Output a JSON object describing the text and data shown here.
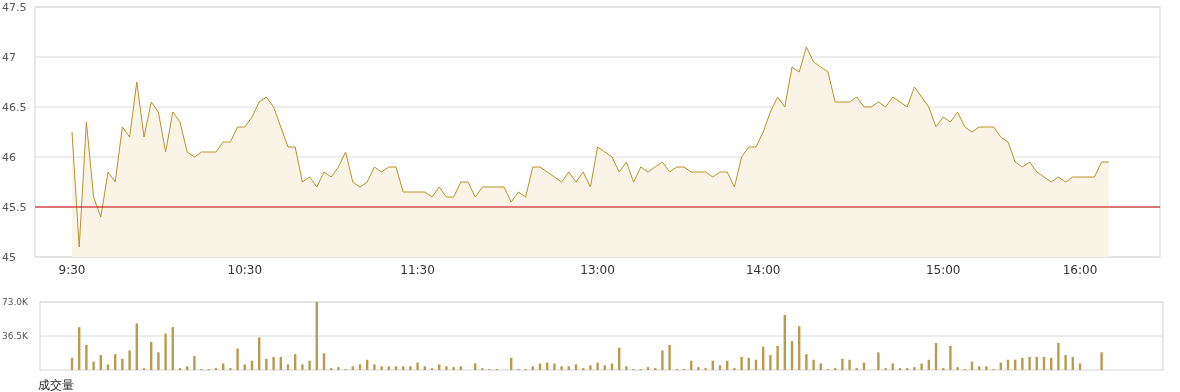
{
  "chart_data": [
    {
      "type": "area",
      "categories": [
        "9:30",
        null,
        null,
        null,
        null,
        null,
        null,
        null,
        null,
        null,
        null,
        null,
        null,
        null,
        null,
        null,
        null,
        null,
        null,
        null,
        null,
        null,
        null,
        null,
        "10:30",
        null,
        null,
        null,
        null,
        null,
        null,
        null,
        null,
        null,
        null,
        null,
        null,
        null,
        null,
        null,
        null,
        null,
        null,
        null,
        null,
        null,
        null,
        null,
        "11:30",
        null,
        null,
        null,
        null,
        null,
        null,
        null,
        null,
        null,
        null,
        null,
        null,
        null,
        null,
        null,
        null,
        null,
        null,
        null,
        null,
        null,
        null,
        null,
        null,
        "13:00",
        null,
        null,
        null,
        null,
        null,
        null,
        null,
        null,
        null,
        null,
        null,
        null,
        null,
        null,
        null,
        null,
        null,
        null,
        null,
        null,
        null,
        null,
        "14:00",
        null,
        null,
        null,
        null,
        null,
        null,
        null,
        null,
        null,
        null,
        null,
        null,
        null,
        null,
        null,
        null,
        null,
        null,
        null,
        null,
        null,
        null,
        null,
        null,
        "15:00",
        null,
        null,
        null,
        null,
        null,
        null,
        null,
        null,
        null,
        null,
        null,
        null,
        null,
        null,
        null,
        null,
        null,
        null,
        "16:00",
        null,
        null,
        null,
        null
      ],
      "series": [
        {
          "color": "#b8932a",
          "values": [
            46.25,
            45.1,
            46.35,
            45.6,
            45.4,
            45.85,
            45.75,
            46.3,
            46.2,
            46.75,
            46.2,
            46.55,
            46.45,
            46.05,
            46.45,
            46.35,
            46.05,
            46.0,
            46.05,
            46.05,
            46.05,
            46.15,
            46.15,
            46.3,
            46.3,
            46.4,
            46.55,
            46.6,
            46.5,
            46.3,
            46.1,
            46.1,
            45.75,
            45.8,
            45.7,
            45.85,
            45.8,
            45.9,
            46.05,
            45.75,
            45.7,
            45.75,
            45.9,
            45.85,
            45.9,
            45.9,
            45.65,
            45.65,
            45.65,
            45.65,
            45.6,
            45.7,
            45.6,
            45.6,
            45.75,
            45.75,
            45.6,
            45.7,
            45.7,
            45.7,
            45.7,
            45.55,
            45.65,
            45.6,
            45.9,
            45.9,
            45.85,
            45.8,
            45.75,
            45.85,
            45.75,
            45.85,
            45.7,
            46.1,
            46.05,
            46.0,
            45.85,
            45.95,
            45.75,
            45.9,
            45.85,
            45.9,
            45.95,
            45.85,
            45.9,
            45.9,
            45.85,
            45.85,
            45.85,
            45.8,
            45.85,
            45.85,
            45.7,
            46.0,
            46.1,
            46.1,
            46.25,
            46.45,
            46.6,
            46.5,
            46.9,
            46.85,
            47.1,
            46.95,
            46.9,
            46.85,
            46.55,
            46.55,
            46.55,
            46.6,
            46.5,
            46.5,
            46.55,
            46.5,
            46.6,
            46.55,
            46.5,
            46.7,
            46.6,
            46.5,
            46.3,
            46.4,
            46.35,
            46.45,
            46.3,
            46.25,
            46.3,
            46.3,
            46.3,
            46.2,
            46.15,
            45.95,
            45.9,
            45.95,
            45.85,
            45.8,
            45.75,
            45.8,
            45.75,
            45.8,
            45.8,
            45.8,
            45.8,
            45.95,
            45.95
          ]
        }
      ],
      "ylim": [
        45,
        47.5
      ],
      "yticks": [
        45,
        45.5,
        46,
        46.5,
        47,
        47.5
      ],
      "grid": "y",
      "ref_lines": [
        {
          "axis": "y",
          "value": 45.5,
          "color": "#c00000"
        }
      ]
    },
    {
      "type": "bar",
      "title": "成交量",
      "categories": [
        null,
        null,
        null,
        null,
        null,
        null,
        null,
        null,
        null,
        null,
        null,
        null,
        null,
        null,
        null,
        null,
        null,
        null,
        null,
        null,
        null,
        null,
        null,
        null,
        null,
        null,
        null,
        null,
        null,
        null,
        null,
        null,
        null,
        null,
        null,
        null,
        null,
        null,
        null,
        null,
        null,
        null,
        null,
        null,
        null,
        null,
        null,
        null,
        null,
        null,
        null,
        null,
        null,
        null,
        null,
        null,
        null,
        null,
        null,
        null,
        null,
        null,
        null,
        null,
        null,
        null,
        null,
        null,
        null,
        null,
        null,
        null,
        null,
        null,
        null,
        null,
        null,
        null,
        null,
        null,
        null,
        null,
        null,
        null,
        null,
        null,
        null,
        null,
        null,
        null,
        null,
        null,
        null,
        null,
        null,
        null,
        null,
        null,
        null,
        null,
        null,
        null,
        null,
        null,
        null,
        null,
        null,
        null,
        null,
        null,
        null,
        null,
        null,
        null,
        null,
        null,
        null,
        null,
        null,
        null,
        null,
        null,
        null,
        null,
        null,
        null,
        null,
        null,
        null,
        null,
        null,
        null,
        null,
        null,
        null,
        null,
        null,
        null,
        null,
        null,
        null,
        null,
        null,
        null,
        null
      ],
      "series": [
        {
          "color": "#b99a50",
          "values": [
            13000,
            46000,
            27000,
            9000,
            16000,
            6000,
            17000,
            12000,
            21000,
            50000,
            2000,
            30000,
            19000,
            39000,
            46000,
            2000,
            4000,
            15000,
            1000,
            1000,
            2000,
            7000,
            2000,
            23000,
            6000,
            10000,
            35000,
            12000,
            14000,
            14000,
            6000,
            17000,
            6000,
            10000,
            73000,
            18000,
            2000,
            3000,
            1000,
            4000,
            6000,
            11000,
            6000,
            4000,
            4000,
            4000,
            4000,
            4000,
            8000,
            4000,
            2000,
            6000,
            4000,
            3000,
            4000,
            null,
            7000,
            2000,
            1000,
            1000,
            null,
            13000,
            1000,
            1000,
            4000,
            7000,
            8000,
            7000,
            4000,
            4000,
            6000,
            2000,
            5000,
            8000,
            5000,
            7000,
            24000,
            4000,
            1000,
            1000,
            3000,
            2000,
            21000,
            27000,
            1000,
            1000,
            10000,
            3000,
            2000,
            10000,
            5000,
            10000,
            2000,
            14000,
            13000,
            11000,
            25000,
            16000,
            26000,
            59000,
            31000,
            47000,
            17000,
            11000,
            7000,
            1000,
            2000,
            12000,
            11000,
            2000,
            8000,
            null,
            19000,
            2000,
            7000,
            2000,
            2000,
            3000,
            7000,
            11000,
            29000,
            2000,
            26000,
            3000,
            1000,
            9000,
            4000,
            4000,
            1000,
            8000,
            11000,
            11000,
            13000,
            14000,
            14000,
            14000,
            13000,
            29000,
            16000,
            14000,
            7000,
            null,
            null,
            19000,
            null
          ]
        }
      ],
      "ylim": [
        0,
        73000
      ],
      "yticks": [
        {
          "value": 36500,
          "label": "36.5K"
        },
        {
          "value": 73000,
          "label": "73.0K"
        }
      ],
      "grid": "y",
      "tick_labels": "y"
    }
  ]
}
